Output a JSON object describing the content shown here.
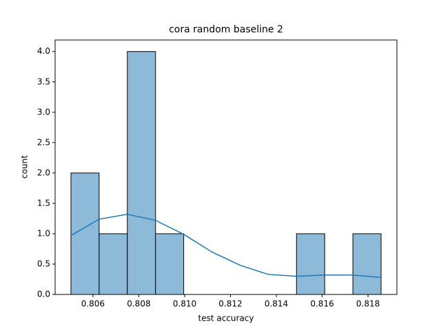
{
  "chart_data": {
    "type": "histogram",
    "title": "cora random baseline 2",
    "xlabel": "test accuracy",
    "ylabel": "count",
    "bins": [
      0.80504,
      0.80627,
      0.8075,
      0.80873,
      0.80996,
      0.81119,
      0.81242,
      0.81365,
      0.81488,
      0.81611,
      0.81734,
      0.81857
    ],
    "counts": [
      2,
      1,
      4,
      1,
      0,
      0,
      0,
      0,
      1,
      0,
      1
    ],
    "color": "#8ebad9",
    "edgecolor": "#000000",
    "kde": {
      "color": "#1f77b4",
      "x": [
        0.80504,
        0.80627,
        0.8075,
        0.80873,
        0.80996,
        0.81119,
        0.81242,
        0.81365,
        0.81488,
        0.81611,
        0.81734,
        0.81857
      ],
      "values": [
        0.97,
        1.24,
        1.32,
        1.22,
        0.99,
        0.7,
        0.48,
        0.33,
        0.3,
        0.32,
        0.32,
        0.28
      ]
    },
    "xlim": [
      0.80435,
      0.81926
    ],
    "xticks": [
      0.806,
      0.808,
      {
        "value": 0.81,
        "label": "0.810"
      },
      0.812,
      0.814,
      0.816,
      0.818
    ],
    "ylim": [
      0,
      4.19
    ],
    "yticks": [
      {
        "value": 0,
        "label": "0.0"
      },
      0.5,
      {
        "value": 1,
        "label": "1.0"
      },
      1.5,
      {
        "value": 2,
        "label": "2.0"
      },
      2.5,
      {
        "value": 3,
        "label": "3.0"
      },
      3.5,
      {
        "value": 4,
        "label": "4.0"
      }
    ]
  }
}
